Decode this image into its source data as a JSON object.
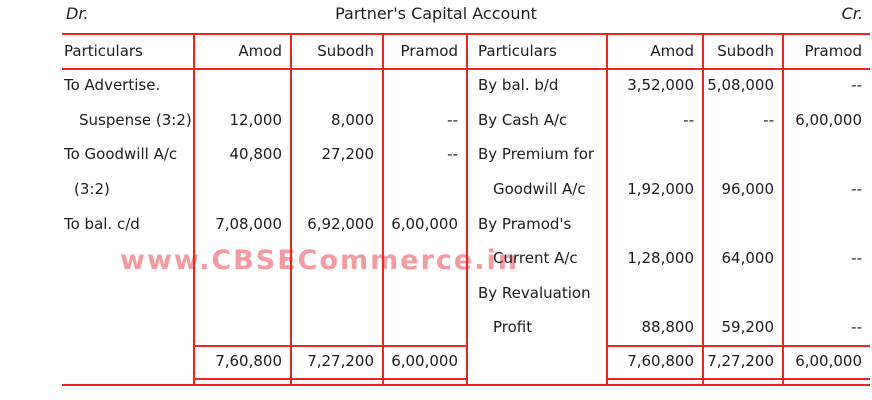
{
  "header": {
    "dr_label": "Dr.",
    "title": "Partner's Capital Account",
    "cr_label": "Cr."
  },
  "watermark": "www.CBSECommerce.in",
  "colors": {
    "border": "#ee2420",
    "text": "#1d1d1d",
    "watermark": "#f49ba1"
  },
  "column_headers": {
    "particulars": "Particulars",
    "amod": "Amod",
    "subodh": "Subodh",
    "pramod": "Pramod"
  },
  "debit": {
    "rows": [
      {
        "particulars": "To Advertise.",
        "amod": "",
        "subodh": "",
        "pramod": ""
      },
      {
        "particulars": "Suspense (3:2)",
        "amod": "12,000",
        "subodh": "8,000",
        "pramod": "--"
      },
      {
        "particulars": "To Goodwill A/c",
        "amod": "40,800",
        "subodh": "27,200",
        "pramod": "--"
      },
      {
        "particulars": "(3:2)",
        "amod": "",
        "subodh": "",
        "pramod": ""
      },
      {
        "particulars": "To bal. c/d",
        "amod": "7,08,000",
        "subodh": "6,92,000",
        "pramod": "6,00,000"
      },
      {
        "particulars": "",
        "amod": "",
        "subodh": "",
        "pramod": ""
      },
      {
        "particulars": "",
        "amod": "",
        "subodh": "",
        "pramod": ""
      },
      {
        "particulars": "",
        "amod": "",
        "subodh": "",
        "pramod": ""
      }
    ],
    "total": {
      "amod": "7,60,800",
      "subodh": "7,27,200",
      "pramod": "6,00,000"
    }
  },
  "credit": {
    "rows": [
      {
        "particulars": "By bal. b/d",
        "amod": "3,52,000",
        "subodh": "5,08,000",
        "pramod": "--"
      },
      {
        "particulars": "By Cash A/c",
        "amod": "--",
        "subodh": "--",
        "pramod": "6,00,000"
      },
      {
        "particulars": "By Premium for",
        "amod": "",
        "subodh": "",
        "pramod": ""
      },
      {
        "particulars": "Goodwill A/c",
        "amod": "1,92,000",
        "subodh": "96,000",
        "pramod": "--"
      },
      {
        "particulars": "By Pramod's",
        "amod": "",
        "subodh": "",
        "pramod": ""
      },
      {
        "particulars": "Current A/c",
        "amod": "1,28,000",
        "subodh": "64,000",
        "pramod": "--"
      },
      {
        "particulars": "By Revaluation",
        "amod": "",
        "subodh": "",
        "pramod": ""
      },
      {
        "particulars": "Profit",
        "amod": "88,800",
        "subodh": "59,200",
        "pramod": "--"
      }
    ],
    "total": {
      "amod": "7,60,800",
      "subodh": "7,27,200",
      "pramod": "6,00,000"
    }
  }
}
